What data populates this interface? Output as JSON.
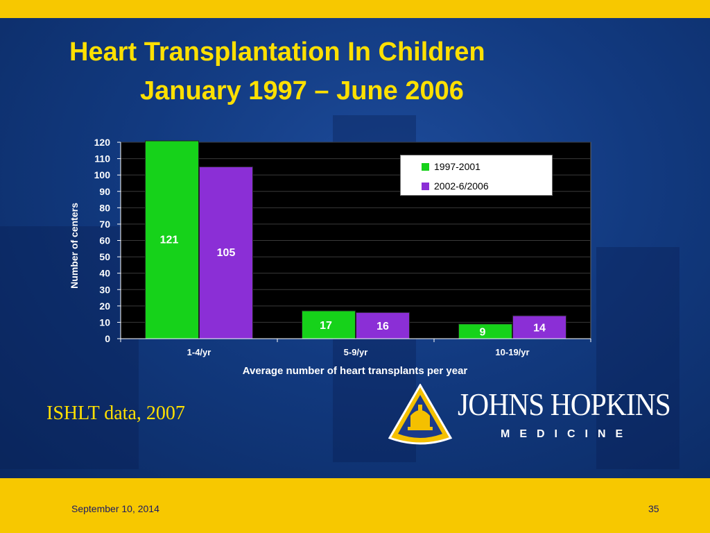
{
  "slide": {
    "title_line1": "Heart Transplantation In Children",
    "title_line2": "January 1997 – June 2006",
    "source_note": "ISHLT data, 2007",
    "footer_date": "September 10, 2014",
    "page_number": "35"
  },
  "logo": {
    "name": "JOHNS HOPKINS",
    "subtitle": "MEDICINE"
  },
  "colors": {
    "title": "#ffe000",
    "series1": "#16d21a",
    "series2": "#8b2fd6",
    "plot_bg": "#000000",
    "band": "#f7c800"
  },
  "chart_data": {
    "type": "bar",
    "title": "",
    "xlabel": "Average number of heart transplants per year",
    "ylabel": "Number of centers",
    "categories": [
      "1-4/yr",
      "5-9/yr",
      "10-19/yr"
    ],
    "series": [
      {
        "name": "1997-2001",
        "values": [
          121,
          17,
          9
        ]
      },
      {
        "name": "2002-6/2006",
        "values": [
          105,
          16,
          14
        ]
      }
    ],
    "ylim": [
      0,
      120
    ],
    "yticks": [
      0,
      10,
      20,
      30,
      40,
      50,
      60,
      70,
      80,
      90,
      100,
      110,
      120
    ],
    "grid": true,
    "legend": "top-right"
  }
}
